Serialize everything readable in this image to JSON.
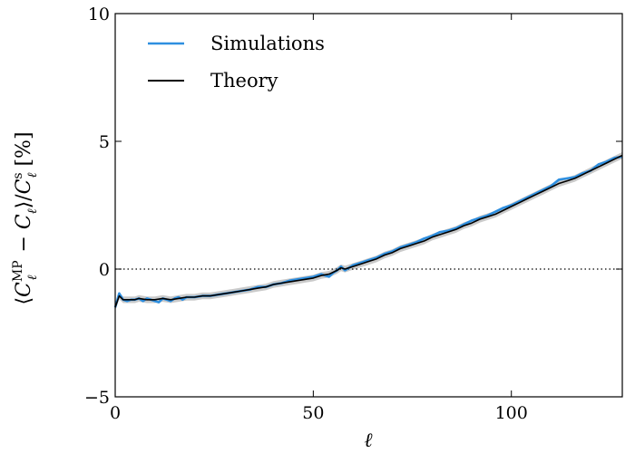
{
  "chart_data": {
    "type": "line",
    "title": "",
    "xlabel": "ℓ",
    "ylabel": "⟨Ĉℓ^MP − Ĉℓ⟩ / Cℓ^s [%]",
    "ylabel_parts": {
      "open": "⟨",
      "c1": "C",
      "c1_sup": "MP",
      "c1_sub": "ℓ",
      "minus": " − ",
      "c2": "C",
      "c2_sub": "ℓ",
      "close": "⟩/",
      "c3": "C",
      "c3_sup": "s",
      "c3_sub": "ℓ",
      "unit": " [%]"
    },
    "xlim": [
      0,
      128
    ],
    "ylim": [
      -5,
      10
    ],
    "x_ticks": [
      0,
      50,
      100
    ],
    "y_ticks": [
      -5,
      0,
      5,
      10
    ],
    "x_tick_labels": [
      "0",
      "50",
      "100"
    ],
    "y_tick_labels": [
      "−5",
      "0",
      "5",
      "10"
    ],
    "grid": false,
    "reference_line": {
      "y": 0,
      "style": "dotted"
    },
    "legend_position": "top-left",
    "series": [
      {
        "name": "Simulations",
        "color": "#2e8fe0",
        "x": [
          0,
          1,
          2,
          3,
          4,
          5,
          6,
          7,
          8,
          9,
          10,
          11,
          12,
          13,
          14,
          15,
          16,
          17,
          18,
          19,
          20,
          22,
          24,
          26,
          28,
          30,
          32,
          34,
          36,
          38,
          40,
          42,
          44,
          46,
          48,
          50,
          52,
          54,
          55,
          56,
          57,
          58,
          59,
          60,
          62,
          64,
          66,
          68,
          70,
          72,
          74,
          76,
          78,
          80,
          82,
          84,
          86,
          88,
          90,
          92,
          94,
          96,
          98,
          100,
          102,
          104,
          106,
          108,
          110,
          112,
          114,
          116,
          118,
          120,
          122,
          124,
          126,
          128
        ],
        "values": [
          -1.5,
          -0.95,
          -1.2,
          -1.25,
          -1.2,
          -1.2,
          -1.15,
          -1.25,
          -1.15,
          -1.2,
          -1.25,
          -1.3,
          -1.15,
          -1.2,
          -1.25,
          -1.15,
          -1.1,
          -1.2,
          -1.1,
          -1.1,
          -1.1,
          -1.05,
          -1.05,
          -1.0,
          -0.95,
          -0.9,
          -0.85,
          -0.8,
          -0.7,
          -0.7,
          -0.6,
          -0.55,
          -0.45,
          -0.4,
          -0.35,
          -0.3,
          -0.2,
          -0.3,
          -0.15,
          -0.05,
          0.1,
          -0.05,
          0.05,
          0.15,
          0.25,
          0.35,
          0.45,
          0.6,
          0.7,
          0.85,
          0.95,
          1.05,
          1.2,
          1.3,
          1.45,
          1.5,
          1.6,
          1.75,
          1.9,
          2.0,
          2.1,
          2.25,
          2.4,
          2.5,
          2.65,
          2.8,
          2.95,
          3.1,
          3.25,
          3.5,
          3.55,
          3.6,
          3.75,
          3.85,
          4.1,
          4.2,
          4.35,
          4.4
        ]
      },
      {
        "name": "Theory",
        "color": "#000000",
        "x": [
          0,
          1,
          2,
          3,
          4,
          5,
          6,
          8,
          10,
          12,
          14,
          16,
          18,
          20,
          22,
          24,
          26,
          28,
          30,
          32,
          34,
          36,
          38,
          40,
          42,
          44,
          46,
          48,
          50,
          52,
          54,
          56,
          57,
          58,
          60,
          62,
          64,
          66,
          68,
          70,
          72,
          74,
          76,
          78,
          80,
          82,
          84,
          86,
          88,
          90,
          92,
          94,
          96,
          98,
          100,
          102,
          104,
          106,
          108,
          110,
          112,
          114,
          116,
          118,
          120,
          122,
          124,
          126,
          128
        ],
        "values": [
          -1.5,
          -1.05,
          -1.2,
          -1.2,
          -1.2,
          -1.2,
          -1.15,
          -1.2,
          -1.2,
          -1.15,
          -1.2,
          -1.15,
          -1.1,
          -1.1,
          -1.05,
          -1.05,
          -1.0,
          -0.95,
          -0.9,
          -0.85,
          -0.8,
          -0.75,
          -0.7,
          -0.6,
          -0.55,
          -0.5,
          -0.45,
          -0.4,
          -0.35,
          -0.25,
          -0.2,
          -0.05,
          0.05,
          0.0,
          0.1,
          0.2,
          0.3,
          0.4,
          0.55,
          0.65,
          0.8,
          0.9,
          1.0,
          1.1,
          1.25,
          1.35,
          1.45,
          1.55,
          1.7,
          1.8,
          1.95,
          2.05,
          2.15,
          2.3,
          2.45,
          2.6,
          2.75,
          2.9,
          3.05,
          3.2,
          3.35,
          3.45,
          3.55,
          3.7,
          3.85,
          4.0,
          4.15,
          4.3,
          4.45
        ]
      }
    ]
  }
}
